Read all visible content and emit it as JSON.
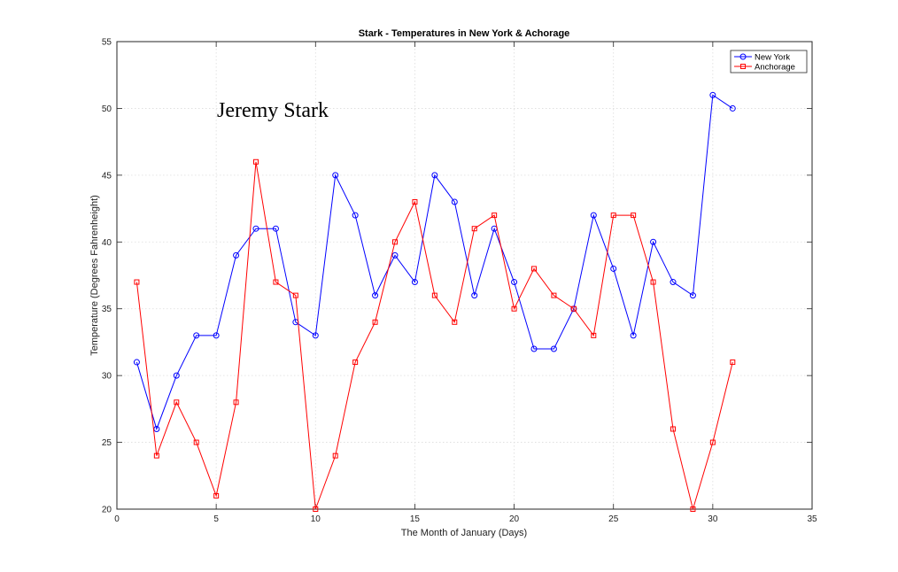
{
  "chart_data": {
    "type": "line",
    "title": "Stark - Temperatures in New York & Achorage",
    "xlabel": "The Month of January (Days)",
    "ylabel": "Temperature (Degrees Fahrenheight)",
    "xlim": [
      0,
      35
    ],
    "ylim": [
      20,
      55
    ],
    "xticks": [
      0,
      5,
      10,
      15,
      20,
      25,
      30,
      35
    ],
    "yticks": [
      20,
      25,
      30,
      35,
      40,
      45,
      50,
      55
    ],
    "grid": true,
    "legend_position": "top-right",
    "annotation": "Jeremy Stark",
    "x": [
      1,
      2,
      3,
      4,
      5,
      6,
      7,
      8,
      9,
      10,
      11,
      12,
      13,
      14,
      15,
      16,
      17,
      18,
      19,
      20,
      21,
      22,
      23,
      24,
      25,
      26,
      27,
      28,
      29,
      30,
      31
    ],
    "series": [
      {
        "name": "New York",
        "color": "#0000ff",
        "marker": "circle",
        "values": [
          31,
          26,
          30,
          33,
          33,
          39,
          41,
          41,
          34,
          33,
          45,
          42,
          36,
          39,
          37,
          45,
          43,
          36,
          41,
          37,
          32,
          32,
          35,
          42,
          38,
          33,
          40,
          37,
          36,
          51,
          50
        ]
      },
      {
        "name": "Anchorage",
        "color": "#ff0000",
        "marker": "square",
        "values": [
          37,
          24,
          28,
          25,
          21,
          28,
          46,
          37,
          36,
          20,
          24,
          31,
          34,
          40,
          43,
          36,
          34,
          41,
          42,
          35,
          38,
          36,
          35,
          33,
          42,
          42,
          37,
          26,
          20,
          25,
          31
        ]
      }
    ]
  }
}
